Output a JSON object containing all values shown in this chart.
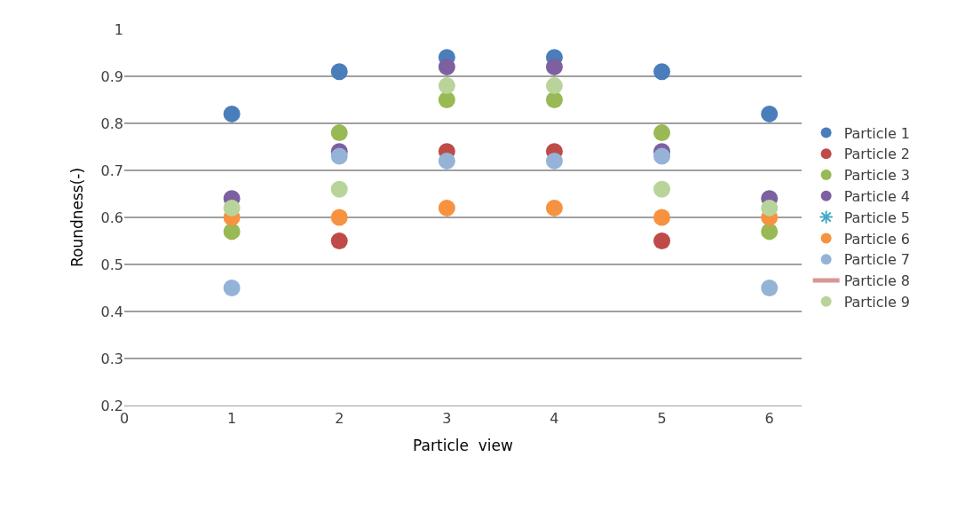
{
  "chart_data": {
    "type": "scatter",
    "xlabel": "Particle  view",
    "ylabel": "Roundness(-)",
    "x": [
      1,
      2,
      3,
      4,
      5,
      6
    ],
    "xlim": [
      0,
      6.3
    ],
    "xticks": [
      0,
      1,
      2,
      3,
      4,
      5,
      6
    ],
    "ylim": [
      0.2,
      1
    ],
    "yticks": [
      0.2,
      0.3,
      0.4,
      0.5,
      0.6,
      0.7,
      0.8,
      0.9,
      1
    ],
    "grid": "y",
    "legend": "right",
    "marker": "circle",
    "series": [
      {
        "name": "Particle 1",
        "color": "#4a7ebb",
        "values": [
          0.82,
          0.91,
          0.94,
          0.94,
          0.91,
          0.82
        ]
      },
      {
        "name": "Particle 2",
        "color": "#be4b48",
        "values": [
          null,
          0.55,
          0.74,
          0.74,
          0.55,
          null
        ]
      },
      {
        "name": "Particle 3",
        "color": "#98b954",
        "values": [
          0.57,
          0.78,
          0.85,
          0.85,
          0.78,
          0.57
        ]
      },
      {
        "name": "Particle 4",
        "color": "#7d60a0",
        "values": [
          0.64,
          0.74,
          0.92,
          0.92,
          0.74,
          0.64
        ]
      },
      {
        "name": "Particle 5",
        "color": "#46aac5",
        "marker": "cross",
        "values": [
          null,
          null,
          null,
          null,
          null,
          null
        ]
      },
      {
        "name": "Particle 6",
        "color": "#f69240",
        "values": [
          0.6,
          0.6,
          0.62,
          0.62,
          0.6,
          0.6
        ]
      },
      {
        "name": "Particle 7",
        "color": "#95b3d7",
        "values": [
          0.45,
          0.73,
          0.72,
          0.72,
          0.73,
          0.45
        ]
      },
      {
        "name": "Particle 8",
        "color": "#d99694",
        "marker": "none",
        "values": [
          null,
          null,
          null,
          null,
          null,
          null
        ]
      },
      {
        "name": "Particle 9",
        "color": "#b9d49a",
        "values": [
          0.62,
          0.66,
          0.88,
          0.88,
          0.66,
          0.62
        ]
      }
    ]
  }
}
